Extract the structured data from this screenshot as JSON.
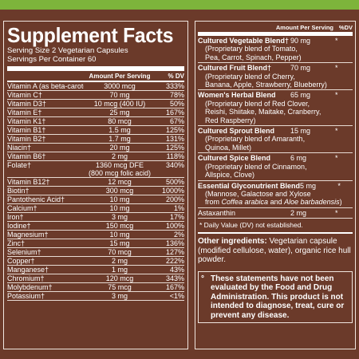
{
  "title": "Supplement Facts",
  "serving_size": "Serving Size 2 Vegetarian Capsules",
  "servings_per_container": "Servings Per Container 60",
  "header": {
    "amount": "Amount Per Serving",
    "dv": "% DV"
  },
  "left_rows": [
    {
      "name": "Vitamin A (as beta-carotene)",
      "amount": "3000 mcg",
      "dv": "333%"
    },
    {
      "name": "Vitamin C†",
      "amount": "70 mg",
      "dv": "78%"
    },
    {
      "name": "Vitamin D3†",
      "amount": "10 mcg (400 IU)",
      "dv": "50%"
    },
    {
      "name": "Vitamin E†",
      "amount": "25 mg",
      "dv": "167%"
    },
    {
      "name": "Vitamin K1†",
      "amount": "80 mcg",
      "dv": "67%"
    },
    {
      "name": "Vitamin B1†",
      "amount": "1.5 mg",
      "dv": "125%"
    },
    {
      "name": "Vitamin B2†",
      "amount": "1.7 mg",
      "dv": "131%"
    },
    {
      "name": "Niacin†",
      "amount": "20 mg",
      "dv": "125%"
    },
    {
      "name": "Vitamin B6†",
      "amount": "2 mg",
      "dv": "118%"
    },
    {
      "name": "Folate†",
      "amount": "1360 mcg DFE",
      "amount2": "(800 mcg folic acid)",
      "dv": "340%"
    },
    {
      "name": "Vitamin B12†",
      "amount": "12 mcg",
      "dv": "500%"
    },
    {
      "name": "Biotin†",
      "amount": "300 mcg",
      "dv": "1000%"
    },
    {
      "name": "Pantothenic Acid†",
      "amount": "10 mg",
      "dv": "200%"
    },
    {
      "name": "Calcium†",
      "amount": "10 mg",
      "dv": "1%"
    },
    {
      "name": "Iron†",
      "amount": "3 mg",
      "dv": "17%"
    },
    {
      "name": "Iodine†",
      "amount": "150 mcg",
      "dv": "100%"
    },
    {
      "name": "Magnesium†",
      "amount": "10 mg",
      "dv": "2%"
    },
    {
      "name": "Zinc†",
      "amount": "15 mg",
      "dv": "136%"
    },
    {
      "name": "Selenium†",
      "amount": "70 mcg",
      "dv": "127%"
    },
    {
      "name": "Copper†",
      "amount": "2 mg",
      "dv": "222%"
    },
    {
      "name": "Manganese†",
      "amount": "1 mg",
      "dv": "43%"
    },
    {
      "name": "Chromium†",
      "amount": "120 mcg",
      "dv": "343%"
    },
    {
      "name": "Molybdenum†",
      "amount": "75 mcg",
      "dv": "167%"
    },
    {
      "name": "Potassium†",
      "amount": "3 mg",
      "dv": "<1%"
    }
  ],
  "right_header": {
    "amount": "Amount Per Serving",
    "dv": "%DV"
  },
  "blends": [
    {
      "name": "Cultured Vegetable Blend†",
      "amount": "90 mg",
      "dv": "*",
      "desc": [
        "(Proprietary blend of Tomato,",
        "Pea, Carrot, Spinach, Pepper)"
      ]
    },
    {
      "name": "Cultured Fruit Blend†",
      "amount": "70 mg",
      "dv": "*",
      "desc": [
        "(Proprietary blend of Cherry,",
        "Banana, Apple, Strawberry, Blueberry)"
      ]
    },
    {
      "name": "Women's Herbal Blend",
      "amount": "65 mg",
      "dv": "*",
      "desc": [
        "(Proprietary blend of Red Clover,",
        "Reishi, Shiitake, Maitake, Cranberry,",
        "Red Raspberry)"
      ]
    },
    {
      "name": "Cultured Sprout Blend",
      "amount": "15 mg",
      "dv": "*",
      "desc": [
        "(Proprietary blend of Amaranth,",
        "Quinoa, Millet)"
      ]
    },
    {
      "name": "Cultured Spice Blend",
      "amount": "6 mg",
      "dv": "*",
      "desc": [
        "(Proprietary blend of Cinnamon,",
        "Allspice, Clove)"
      ]
    },
    {
      "name": "Essential Glyconutrient Blend",
      "amount": "5 mg",
      "dv": "*",
      "desc": [
        "(Mannose, Galactose and Xylose",
        "from Coffea arabica and Aloe barbadensis)"
      ]
    }
  ],
  "astaxanthin": {
    "name": "Astaxanthin",
    "amount": "2 mg",
    "dv": "*"
  },
  "dv_note": "* Daily Value (DV) not established.",
  "other_label": "Other ingredients:",
  "other_text": "Vegetarian capsule (modified cellulose, water), organic rice hull powder.",
  "disclaimer_mark": "°",
  "disclaimer": "These statements have not been evaluated by the Food and Drug Administration. This product is not intended to diagnose, treat, cure or prevent any disease.",
  "colors": {
    "background": "#6b3a2a",
    "top_bar": "#7db43b",
    "text": "#ffffff"
  }
}
